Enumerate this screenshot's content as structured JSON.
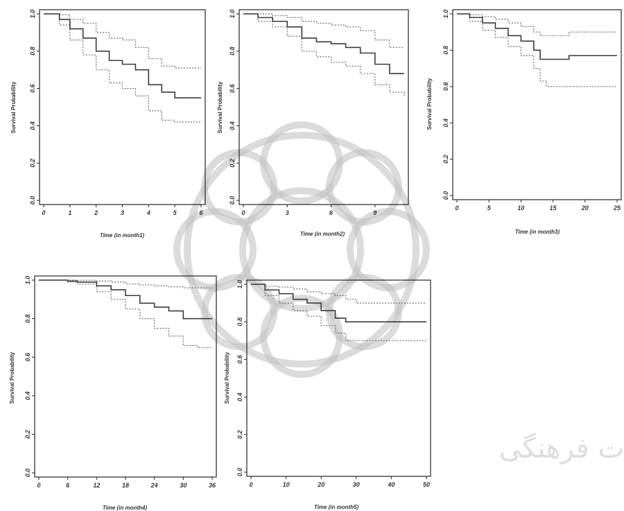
{
  "watermark": {
    "text": "پژوهشگاه علوم انسانی و مطالعات فرهنگی"
  },
  "chart_data": [
    {
      "type": "line",
      "xlabel": "Time (in month1)",
      "ylabel": "Survival Probability",
      "xlim": [
        0,
        6
      ],
      "ylim": [
        0,
        1
      ],
      "xticks": [
        "0",
        "1",
        "2",
        "3",
        "4",
        "5",
        "6"
      ],
      "yticks": [
        "0.0",
        "0.2",
        "0.4",
        "0.6",
        "0.8",
        "1.0"
      ],
      "series": [
        {
          "x": [
            0,
            0.6,
            1,
            1.5,
            2,
            2.5,
            3,
            3.5,
            4,
            4.5,
            5,
            6
          ],
          "y": [
            1.0,
            0.97,
            0.92,
            0.87,
            0.8,
            0.75,
            0.73,
            0.7,
            0.62,
            0.58,
            0.55,
            0.55
          ]
        },
        {
          "x": [
            0,
            0.6,
            1,
            1.5,
            2,
            2.5,
            3,
            3.5,
            4,
            4.5,
            5,
            6
          ],
          "y": [
            1.0,
            0.995,
            0.97,
            0.95,
            0.9,
            0.87,
            0.86,
            0.82,
            0.76,
            0.72,
            0.71,
            0.71
          ]
        },
        {
          "x": [
            0,
            0.6,
            1,
            1.5,
            2,
            2.5,
            3,
            3.5,
            4,
            4.5,
            5,
            6
          ],
          "y": [
            1.0,
            0.94,
            0.86,
            0.78,
            0.7,
            0.63,
            0.6,
            0.56,
            0.48,
            0.43,
            0.42,
            0.42
          ]
        }
      ]
    },
    {
      "type": "line",
      "xlabel": "Time (in month2)",
      "ylabel": "Survival Probability",
      "xlim": [
        0,
        11
      ],
      "ylim": [
        0,
        1
      ],
      "xticks": [
        "0",
        "3",
        "6",
        "9"
      ],
      "yticks": [
        "0.0",
        "0.2",
        "0.4",
        "0.6",
        "0.8",
        "1.0"
      ],
      "series": [
        {
          "x": [
            0,
            1,
            2,
            3,
            4,
            5,
            6,
            7,
            8,
            9,
            10,
            11
          ],
          "y": [
            1.0,
            0.98,
            0.96,
            0.93,
            0.87,
            0.85,
            0.84,
            0.82,
            0.79,
            0.73,
            0.68,
            0.68
          ]
        },
        {
          "x": [
            0,
            1,
            2,
            3,
            4,
            5,
            6,
            7,
            8,
            9,
            10,
            11
          ],
          "y": [
            1.0,
            1.0,
            0.99,
            0.98,
            0.96,
            0.95,
            0.94,
            0.93,
            0.91,
            0.86,
            0.82,
            0.82
          ]
        },
        {
          "x": [
            0,
            1,
            2,
            3,
            4,
            5,
            6,
            7,
            8,
            9,
            10,
            11
          ],
          "y": [
            1.0,
            0.96,
            0.93,
            0.88,
            0.8,
            0.77,
            0.74,
            0.72,
            0.68,
            0.62,
            0.58,
            0.56
          ]
        }
      ]
    },
    {
      "type": "line",
      "xlabel": "Time (in month3)",
      "ylabel": "Survival Probability",
      "xlim": [
        0,
        25
      ],
      "ylim": [
        0,
        1
      ],
      "xticks": [
        "0",
        "5",
        "10",
        "15",
        "20",
        "25"
      ],
      "yticks": [
        "0.0",
        "0.2",
        "0.4",
        "0.6",
        "0.8",
        "1.0"
      ],
      "series": [
        {
          "x": [
            0,
            2,
            4,
            6,
            8,
            10,
            12,
            13,
            14,
            17.5,
            25
          ],
          "y": [
            1.0,
            0.98,
            0.95,
            0.92,
            0.88,
            0.85,
            0.8,
            0.75,
            0.75,
            0.77,
            0.77
          ]
        },
        {
          "x": [
            0,
            2,
            4,
            6,
            8,
            10,
            12,
            13,
            14,
            17.5,
            25
          ],
          "y": [
            1.0,
            0.995,
            0.985,
            0.97,
            0.95,
            0.93,
            0.9,
            0.88,
            0.88,
            0.9,
            0.9
          ]
        },
        {
          "x": [
            0,
            2,
            4,
            6,
            8,
            10,
            12,
            13,
            14,
            17.5,
            25
          ],
          "y": [
            1.0,
            0.96,
            0.91,
            0.87,
            0.82,
            0.77,
            0.7,
            0.63,
            0.6,
            0.6,
            0.6
          ]
        }
      ]
    },
    {
      "type": "line",
      "xlabel": "Time (in month4)",
      "ylabel": "Survival Probability",
      "xlim": [
        0,
        36
      ],
      "ylim": [
        0,
        1
      ],
      "xticks": [
        "0",
        "6",
        "12",
        "18",
        "24",
        "30",
        "36"
      ],
      "yticks": [
        "0.0",
        "0.2",
        "0.4",
        "0.6",
        "0.8",
        "1.0"
      ],
      "series": [
        {
          "x": [
            0,
            6,
            8,
            12,
            15,
            18,
            21,
            24,
            27,
            30,
            33,
            36
          ],
          "y": [
            1.0,
            0.995,
            0.99,
            0.97,
            0.95,
            0.92,
            0.88,
            0.86,
            0.84,
            0.8,
            0.8,
            0.8
          ]
        },
        {
          "x": [
            0,
            6,
            8,
            12,
            15,
            18,
            21,
            24,
            27,
            30,
            33,
            36
          ],
          "y": [
            1.0,
            1.0,
            0.999,
            0.995,
            0.99,
            0.98,
            0.975,
            0.97,
            0.965,
            0.96,
            0.96,
            0.96
          ]
        },
        {
          "x": [
            0,
            6,
            8,
            12,
            15,
            18,
            21,
            24,
            27,
            30,
            33,
            36
          ],
          "y": [
            1.0,
            0.99,
            0.98,
            0.94,
            0.9,
            0.85,
            0.8,
            0.75,
            0.71,
            0.66,
            0.65,
            0.65
          ]
        }
      ]
    },
    {
      "type": "line",
      "xlabel": "Time (in month5)",
      "ylabel": "Survival Probability",
      "xlim": [
        0,
        50
      ],
      "ylim": [
        0,
        1
      ],
      "xticks": [
        "0",
        "10",
        "20",
        "30",
        "40",
        "50"
      ],
      "yticks": [
        "0.0",
        "0.2",
        "0.4",
        "0.6",
        "0.8",
        "1.0"
      ],
      "series": [
        {
          "x": [
            0,
            4,
            8,
            12,
            16,
            20,
            24,
            27,
            30,
            40,
            50
          ],
          "y": [
            1.0,
            0.97,
            0.95,
            0.92,
            0.9,
            0.86,
            0.82,
            0.8,
            0.8,
            0.8,
            0.8
          ]
        },
        {
          "x": [
            0,
            4,
            8,
            12,
            16,
            20,
            24,
            27,
            30,
            40,
            50
          ],
          "y": [
            1.0,
            0.99,
            0.985,
            0.975,
            0.96,
            0.95,
            0.94,
            0.92,
            0.9,
            0.9,
            0.9
          ]
        },
        {
          "x": [
            0,
            4,
            8,
            12,
            16,
            20,
            24,
            27,
            30,
            40,
            50
          ],
          "y": [
            1.0,
            0.94,
            0.9,
            0.86,
            0.83,
            0.78,
            0.74,
            0.7,
            0.7,
            0.7,
            0.7
          ]
        }
      ]
    }
  ]
}
